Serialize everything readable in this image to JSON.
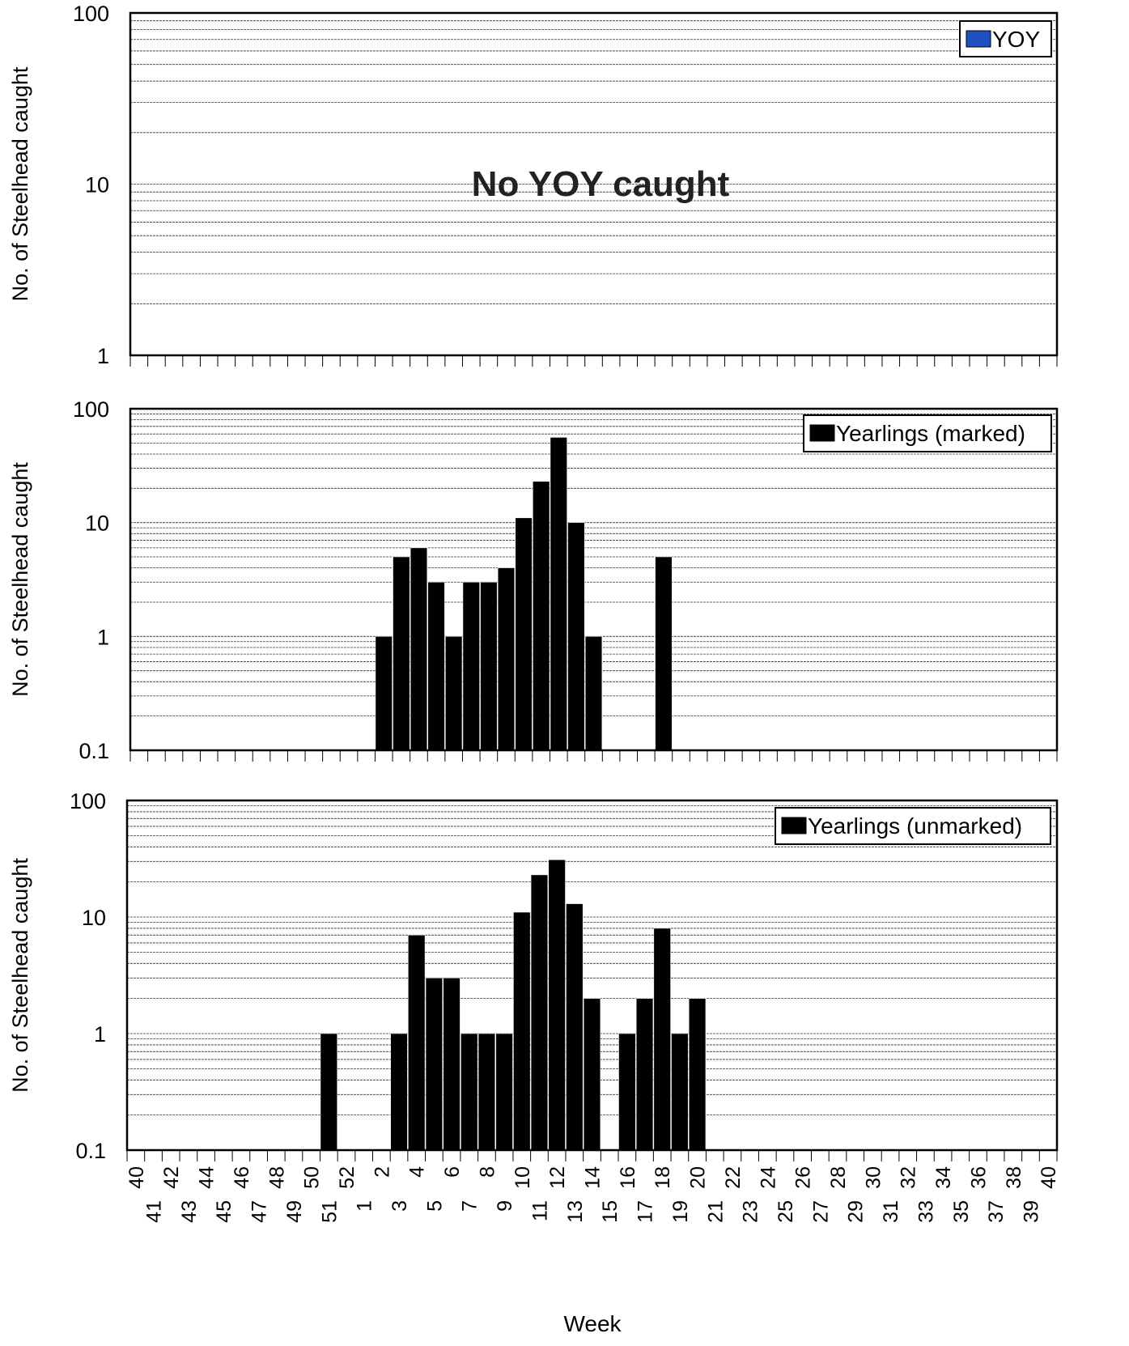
{
  "chart_data": [
    {
      "type": "bar",
      "panel": "yoy",
      "scale": "log",
      "ylim": [
        1,
        100
      ],
      "yticks": [
        "1",
        "10",
        "100"
      ],
      "ylabel": "No. of Steelhead caught",
      "grid": true,
      "legend": "top-right",
      "series": [
        {
          "name": "YOY",
          "color": "#1f4fc1",
          "values": []
        }
      ],
      "annotation": "No YOY caught"
    },
    {
      "type": "bar",
      "panel": "marked",
      "scale": "log",
      "ylim": [
        0.1,
        100
      ],
      "yticks": [
        "0.1",
        "1",
        "10",
        "100"
      ],
      "ylabel": "No. of Steelhead caught",
      "grid": true,
      "legend": "top-right",
      "series": [
        {
          "name": "Yearlings (marked)",
          "color": "#000000",
          "values": [
            [
              2,
              1
            ],
            [
              3,
              5
            ],
            [
              4,
              6
            ],
            [
              5,
              3
            ],
            [
              6,
              1
            ],
            [
              7,
              3
            ],
            [
              8,
              3
            ],
            [
              9,
              4
            ],
            [
              10,
              11
            ],
            [
              11,
              23
            ],
            [
              12,
              56
            ],
            [
              13,
              10
            ],
            [
              14,
              1
            ],
            [
              18,
              5
            ]
          ]
        }
      ]
    },
    {
      "type": "bar",
      "panel": "unmarked",
      "scale": "log",
      "ylim": [
        0.1,
        100
      ],
      "yticks": [
        "0.1",
        "1",
        "10",
        "100"
      ],
      "ylabel": "No. of Steelhead caught",
      "grid": true,
      "legend": "top-right",
      "series": [
        {
          "name": "Yearlings (unmarked)",
          "color": "#000000",
          "values": [
            [
              51,
              1
            ],
            [
              3,
              1
            ],
            [
              4,
              7
            ],
            [
              5,
              3
            ],
            [
              6,
              3
            ],
            [
              7,
              1
            ],
            [
              8,
              1
            ],
            [
              9,
              1
            ],
            [
              10,
              11
            ],
            [
              11,
              23
            ],
            [
              12,
              31
            ],
            [
              13,
              13
            ],
            [
              14,
              2
            ],
            [
              16,
              1
            ],
            [
              17,
              2
            ],
            [
              18,
              8
            ],
            [
              19,
              1
            ],
            [
              20,
              2
            ]
          ]
        }
      ],
      "xlabel": "Week",
      "categories": [
        "40",
        "41",
        "42",
        "43",
        "44",
        "45",
        "46",
        "47",
        "48",
        "49",
        "50",
        "51",
        "52",
        "1",
        "2",
        "3",
        "4",
        "5",
        "6",
        "7",
        "8",
        "9",
        "10",
        "11",
        "12",
        "13",
        "14",
        "15",
        "16",
        "17",
        "18",
        "19",
        "20",
        "21",
        "22",
        "23",
        "24",
        "25",
        "26",
        "27",
        "28",
        "29",
        "30",
        "31",
        "32",
        "33",
        "34",
        "35",
        "36",
        "37",
        "38",
        "39",
        "40"
      ]
    }
  ]
}
